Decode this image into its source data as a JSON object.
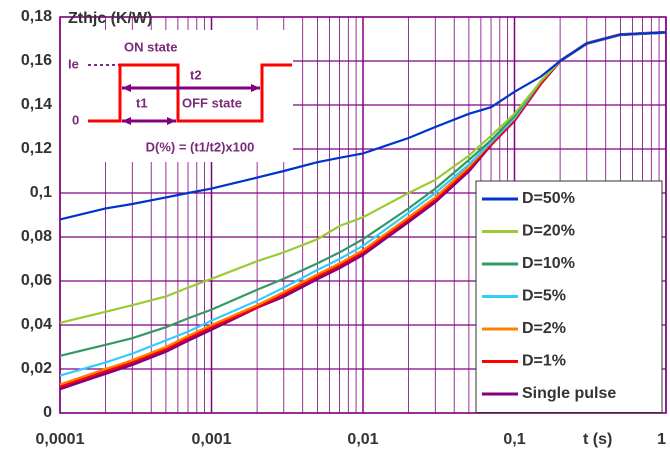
{
  "chart_data": {
    "type": "line",
    "y_label": "Zthjc (K/W)",
    "x_label": "t (s)",
    "log_x": true,
    "grid": true,
    "minor_grid": true,
    "legend": "lower right",
    "x": [
      0.0001,
      0.0002,
      0.0003,
      0.0005,
      0.0007,
      0.001,
      0.002,
      0.003,
      0.005,
      0.007,
      0.01,
      0.02,
      0.03,
      0.05,
      0.07,
      0.1,
      0.15,
      0.2,
      0.3,
      0.5,
      1
    ],
    "series": [
      {
        "name": "D=50%",
        "color": "#0033cc",
        "values": [
          0.088,
          0.093,
          0.095,
          0.098,
          0.1,
          0.102,
          0.107,
          0.11,
          0.114,
          0.116,
          0.118,
          0.125,
          0.13,
          0.136,
          0.139,
          0.146,
          0.153,
          0.16,
          0.168,
          0.172,
          0.173
        ]
      },
      {
        "name": "D=20%",
        "color": "#99cc33",
        "values": [
          0.041,
          0.046,
          0.049,
          0.053,
          0.057,
          0.061,
          0.069,
          0.073,
          0.079,
          0.085,
          0.089,
          0.1,
          0.106,
          0.117,
          0.126,
          0.136,
          0.151,
          0.16,
          0.168,
          0.172,
          0.173
        ]
      },
      {
        "name": "D=10%",
        "color": "#339966",
        "values": [
          0.026,
          0.031,
          0.034,
          0.039,
          0.043,
          0.047,
          0.056,
          0.061,
          0.068,
          0.073,
          0.079,
          0.093,
          0.102,
          0.115,
          0.124,
          0.135,
          0.151,
          0.16,
          0.168,
          0.172,
          0.173
        ]
      },
      {
        "name": "D=5%",
        "color": "#33ccff",
        "values": [
          0.017,
          0.023,
          0.027,
          0.033,
          0.037,
          0.042,
          0.051,
          0.057,
          0.065,
          0.07,
          0.076,
          0.091,
          0.1,
          0.113,
          0.123,
          0.134,
          0.151,
          0.16,
          0.168,
          0.172,
          0.173
        ]
      },
      {
        "name": "D=2%",
        "color": "#ff8000",
        "values": [
          0.013,
          0.02,
          0.024,
          0.03,
          0.035,
          0.04,
          0.049,
          0.055,
          0.063,
          0.068,
          0.074,
          0.089,
          0.098,
          0.112,
          0.123,
          0.134,
          0.151,
          0.16,
          0.168,
          0.172,
          0.173
        ]
      },
      {
        "name": "D=1%",
        "color": "#ff0000",
        "values": [
          0.012,
          0.019,
          0.023,
          0.029,
          0.034,
          0.039,
          0.048,
          0.054,
          0.062,
          0.067,
          0.073,
          0.088,
          0.097,
          0.111,
          0.122,
          0.133,
          0.15,
          0.16,
          0.168,
          0.172,
          0.173
        ]
      },
      {
        "name": "Single pulse",
        "color": "#800080",
        "values": [
          0.011,
          0.018,
          0.022,
          0.028,
          0.033,
          0.038,
          0.048,
          0.053,
          0.061,
          0.066,
          0.072,
          0.087,
          0.096,
          0.11,
          0.122,
          0.133,
          0.15,
          0.16,
          0.168,
          0.172,
          0.173
        ]
      }
    ],
    "xlim": [
      0.0001,
      1
    ],
    "xticks": [
      {
        "value": 0.0001,
        "label": "0,0001"
      },
      {
        "value": 0.001,
        "label": "0,001"
      },
      {
        "value": 0.01,
        "label": "0,01"
      },
      {
        "value": 0.1,
        "label": "0,1"
      },
      1
    ],
    "ylim": [
      0,
      0.18
    ],
    "yticks": [
      0,
      {
        "value": 0.02,
        "label": "0,02"
      },
      {
        "value": 0.04,
        "label": "0,04"
      },
      {
        "value": 0.06,
        "label": "0,06"
      },
      {
        "value": 0.08,
        "label": "0,08"
      },
      {
        "value": 0.1,
        "label": "0,1"
      },
      {
        "value": 0.12,
        "label": "0,12"
      },
      {
        "value": 0.14,
        "label": "0,14"
      },
      {
        "value": 0.16,
        "label": "0,16"
      },
      {
        "value": 0.18,
        "label": "0,18"
      }
    ],
    "inset": {
      "ie": "Ie",
      "on": "ON  state",
      "t2": "t2",
      "t1": "t1",
      "off": "OFF  state",
      "zero": "0",
      "formula": "D(%)  =  (t1/t2)x100"
    }
  }
}
